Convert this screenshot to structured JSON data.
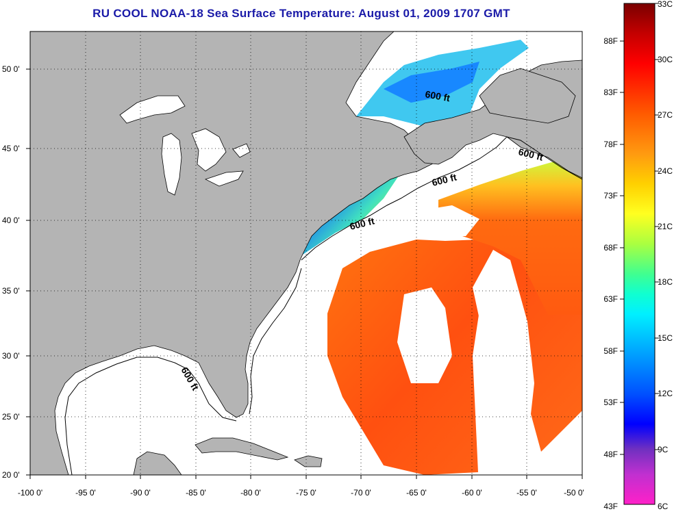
{
  "title": "RU COOL  NOAA-18  Sea Surface Temperature:  August 01, 2009 1707 GMT",
  "map": {
    "lon_range": [
      -100,
      -50
    ],
    "lat_range": [
      20,
      52.5
    ],
    "grid": "dotted",
    "x_ticks": [
      -100,
      -95,
      -90,
      -85,
      -80,
      -75,
      -70,
      -65,
      -60,
      -55,
      -50
    ],
    "x_tick_labels": [
      "-100 0'",
      "-95 0'",
      "-90 0'",
      "-85 0'",
      "-80 0'",
      "-75 0'",
      "-70 0'",
      "-65 0'",
      "-60 0'",
      "-55 0'",
      "-50 0'"
    ],
    "y_ticks": [
      20,
      25,
      30,
      35,
      40,
      45,
      50
    ],
    "y_tick_labels": [
      "20 0'",
      "25 0'",
      "30 0'",
      "35 0'",
      "40 0'",
      "45 0'",
      "50 0'"
    ],
    "land_color": "#b4b4b4",
    "isobath_labels": [
      "600 ft",
      "600 ft",
      "600 ft",
      "600 ft",
      "600 ft"
    ]
  },
  "colorbar": {
    "fahrenheit_labels": [
      "88F",
      "83F",
      "78F",
      "73F",
      "68F",
      "63F",
      "58F",
      "53F",
      "48F",
      "43F"
    ],
    "celsius_labels": [
      "33C",
      "30C",
      "27C",
      "24C",
      "21C",
      "18C",
      "15C",
      "12C",
      "9C",
      "6C"
    ],
    "celsius_range": [
      6,
      33
    ]
  }
}
